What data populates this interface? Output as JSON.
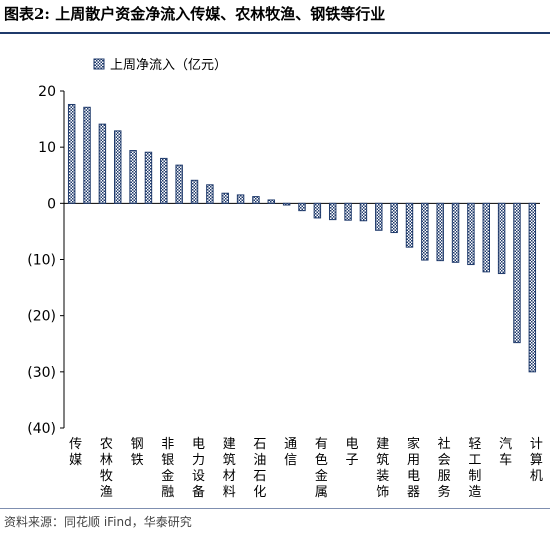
{
  "header": {
    "title": "图表2:   上周散户资金净流入传媒、农林牧渔、钢铁等行业"
  },
  "footer": {
    "source": "资料来源：同花顺 iFind，华泰研究"
  },
  "chart_data": {
    "type": "bar",
    "legend": [
      "上周净流入（亿元）"
    ],
    "legend_position": "top-left",
    "categories": [
      "传媒",
      "",
      "农林牧渔",
      "",
      "钢铁",
      "",
      "非银金融",
      "",
      "电力设备",
      "",
      "建筑材料",
      "",
      "石油石化",
      "",
      "通信",
      "",
      "有色金属",
      "",
      "电子",
      "",
      "建筑装饰",
      "",
      "家用电器",
      "",
      "社会服务",
      "",
      "轻工制造",
      "",
      "汽车",
      "",
      "计算机"
    ],
    "series": [
      {
        "name": "上周净流入（亿元）",
        "values": [
          17.6,
          17.1,
          14.1,
          12.9,
          9.4,
          9.1,
          8.0,
          6.8,
          4.1,
          3.3,
          1.8,
          1.5,
          1.2,
          0.6,
          -0.3,
          -1.3,
          -2.6,
          -2.9,
          -3.0,
          -3.1,
          -4.8,
          -5.2,
          -7.8,
          -10.1,
          -10.2,
          -10.5,
          -10.9,
          -12.2,
          -12.5,
          -24.8,
          -30.0
        ]
      }
    ],
    "ylim": [
      -40,
      20
    ],
    "yticks": [
      20,
      10,
      0,
      -10,
      -20,
      -30,
      -40
    ],
    "ytick_labels": [
      "20",
      "10",
      "0",
      "(10)",
      "(20)",
      "(30)",
      "(40)"
    ],
    "colors": {
      "bar_fill": "#ffffff",
      "bar_stroke": "#1f3a6b",
      "bar_pattern": "#1f3a6b"
    }
  }
}
